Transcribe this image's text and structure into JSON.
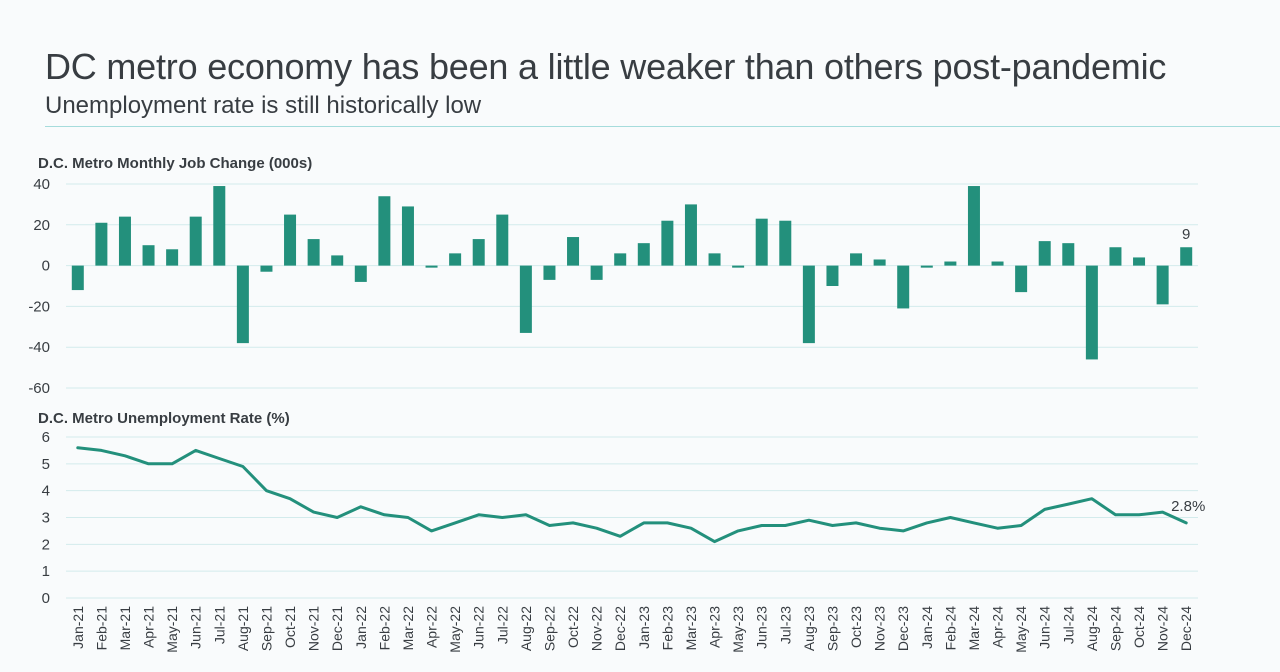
{
  "header": {
    "title": "DC metro economy has been a little weaker than others post-pandemic",
    "subtitle": "Unemployment rate is still historically low"
  },
  "colors": {
    "bar": "#23907c",
    "line": "#23907c",
    "grid": "#d3ebec",
    "text": "#383d42"
  },
  "chart_data": [
    {
      "type": "bar",
      "title": "D.C. Metro Monthly Job Change (000s)",
      "categories": [
        "Jan-21",
        "Feb-21",
        "Mar-21",
        "Apr-21",
        "May-21",
        "Jun-21",
        "Jul-21",
        "Aug-21",
        "Sep-21",
        "Oct-21",
        "Nov-21",
        "Dec-21",
        "Jan-22",
        "Feb-22",
        "Mar-22",
        "Apr-22",
        "May-22",
        "Jun-22",
        "Jul-22",
        "Aug-22",
        "Sep-22",
        "Oct-22",
        "Nov-22",
        "Dec-22",
        "Jan-23",
        "Feb-23",
        "Mar-23",
        "Apr-23",
        "May-23",
        "Jun-23",
        "Jul-23",
        "Aug-23",
        "Sep-23",
        "Oct-23",
        "Nov-23",
        "Dec-23",
        "Jan-24",
        "Feb-24",
        "Mar-24",
        "Apr-24",
        "May-24",
        "Jun-24",
        "Jul-24",
        "Aug-24",
        "Sep-24",
        "Oct-24",
        "Nov-24",
        "Dec-24"
      ],
      "values": [
        -12,
        21,
        24,
        10,
        8,
        24,
        39,
        -38,
        -3,
        25,
        13,
        5,
        -8,
        34,
        29,
        -1,
        6,
        13,
        25,
        -33,
        -7,
        14,
        -7,
        6,
        11,
        22,
        30,
        6,
        -1,
        23,
        22,
        -38,
        -10,
        6,
        3,
        -21,
        -1,
        2,
        39,
        2,
        -13,
        12,
        11,
        -46,
        9,
        4,
        -19,
        9
      ],
      "ylim": [
        -60,
        40
      ],
      "yticks": [
        40,
        20,
        0,
        -20,
        -40,
        -60
      ],
      "last_label": "9"
    },
    {
      "type": "line",
      "title": "D.C. Metro Unemployment Rate (%)",
      "categories": [
        "Jan-21",
        "Feb-21",
        "Mar-21",
        "Apr-21",
        "May-21",
        "Jun-21",
        "Jul-21",
        "Aug-21",
        "Sep-21",
        "Oct-21",
        "Nov-21",
        "Dec-21",
        "Jan-22",
        "Feb-22",
        "Mar-22",
        "Apr-22",
        "May-22",
        "Jun-22",
        "Jul-22",
        "Aug-22",
        "Sep-22",
        "Oct-22",
        "Nov-22",
        "Dec-22",
        "Jan-23",
        "Feb-23",
        "Mar-23",
        "Apr-23",
        "May-23",
        "Jun-23",
        "Jul-23",
        "Aug-23",
        "Sep-23",
        "Oct-23",
        "Nov-23",
        "Dec-23",
        "Jan-24",
        "Feb-24",
        "Mar-24",
        "Apr-24",
        "May-24",
        "Jun-24",
        "Jul-24",
        "Aug-24",
        "Sep-24",
        "Oct-24",
        "Nov-24",
        "Dec-24"
      ],
      "values": [
        5.6,
        5.5,
        5.3,
        5.0,
        5.0,
        5.5,
        5.2,
        4.9,
        4.0,
        3.7,
        3.2,
        3.0,
        3.4,
        3.1,
        3.0,
        2.5,
        2.8,
        3.1,
        3.0,
        3.1,
        2.7,
        2.8,
        2.6,
        2.3,
        2.8,
        2.8,
        2.6,
        2.1,
        2.5,
        2.7,
        2.7,
        2.9,
        2.7,
        2.8,
        2.6,
        2.5,
        2.8,
        3.0,
        2.8,
        2.6,
        2.7,
        3.3,
        3.5,
        3.7,
        3.1,
        3.1,
        3.2,
        2.8
      ],
      "ylim": [
        0,
        6
      ],
      "yticks": [
        6,
        5,
        4,
        3,
        2,
        1,
        0
      ],
      "last_label": "2.8%"
    }
  ]
}
